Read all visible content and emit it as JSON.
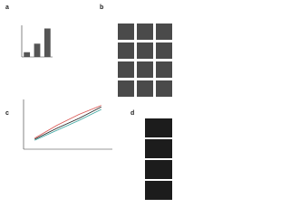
{
  "panel_labels": [
    "a",
    "b",
    "c",
    "d"
  ],
  "chart_data": [
    {
      "type": "bar",
      "values": [
        15,
        42,
        90
      ],
      "color": "#555555",
      "ylim": [
        0,
        100
      ]
    },
    {
      "type": "line",
      "x": [
        1,
        2,
        3,
        4
      ],
      "xlim": [
        0.5,
        4.5
      ],
      "ylim": [
        0,
        100
      ],
      "series": [
        {
          "color": "#222222",
          "values": [
            20,
            42,
            62,
            85
          ]
        },
        {
          "color": "#d9534f",
          "values": [
            22,
            48,
            70,
            88
          ]
        },
        {
          "color": "#3aa6a0",
          "values": [
            18,
            38,
            58,
            80
          ]
        }
      ]
    }
  ]
}
